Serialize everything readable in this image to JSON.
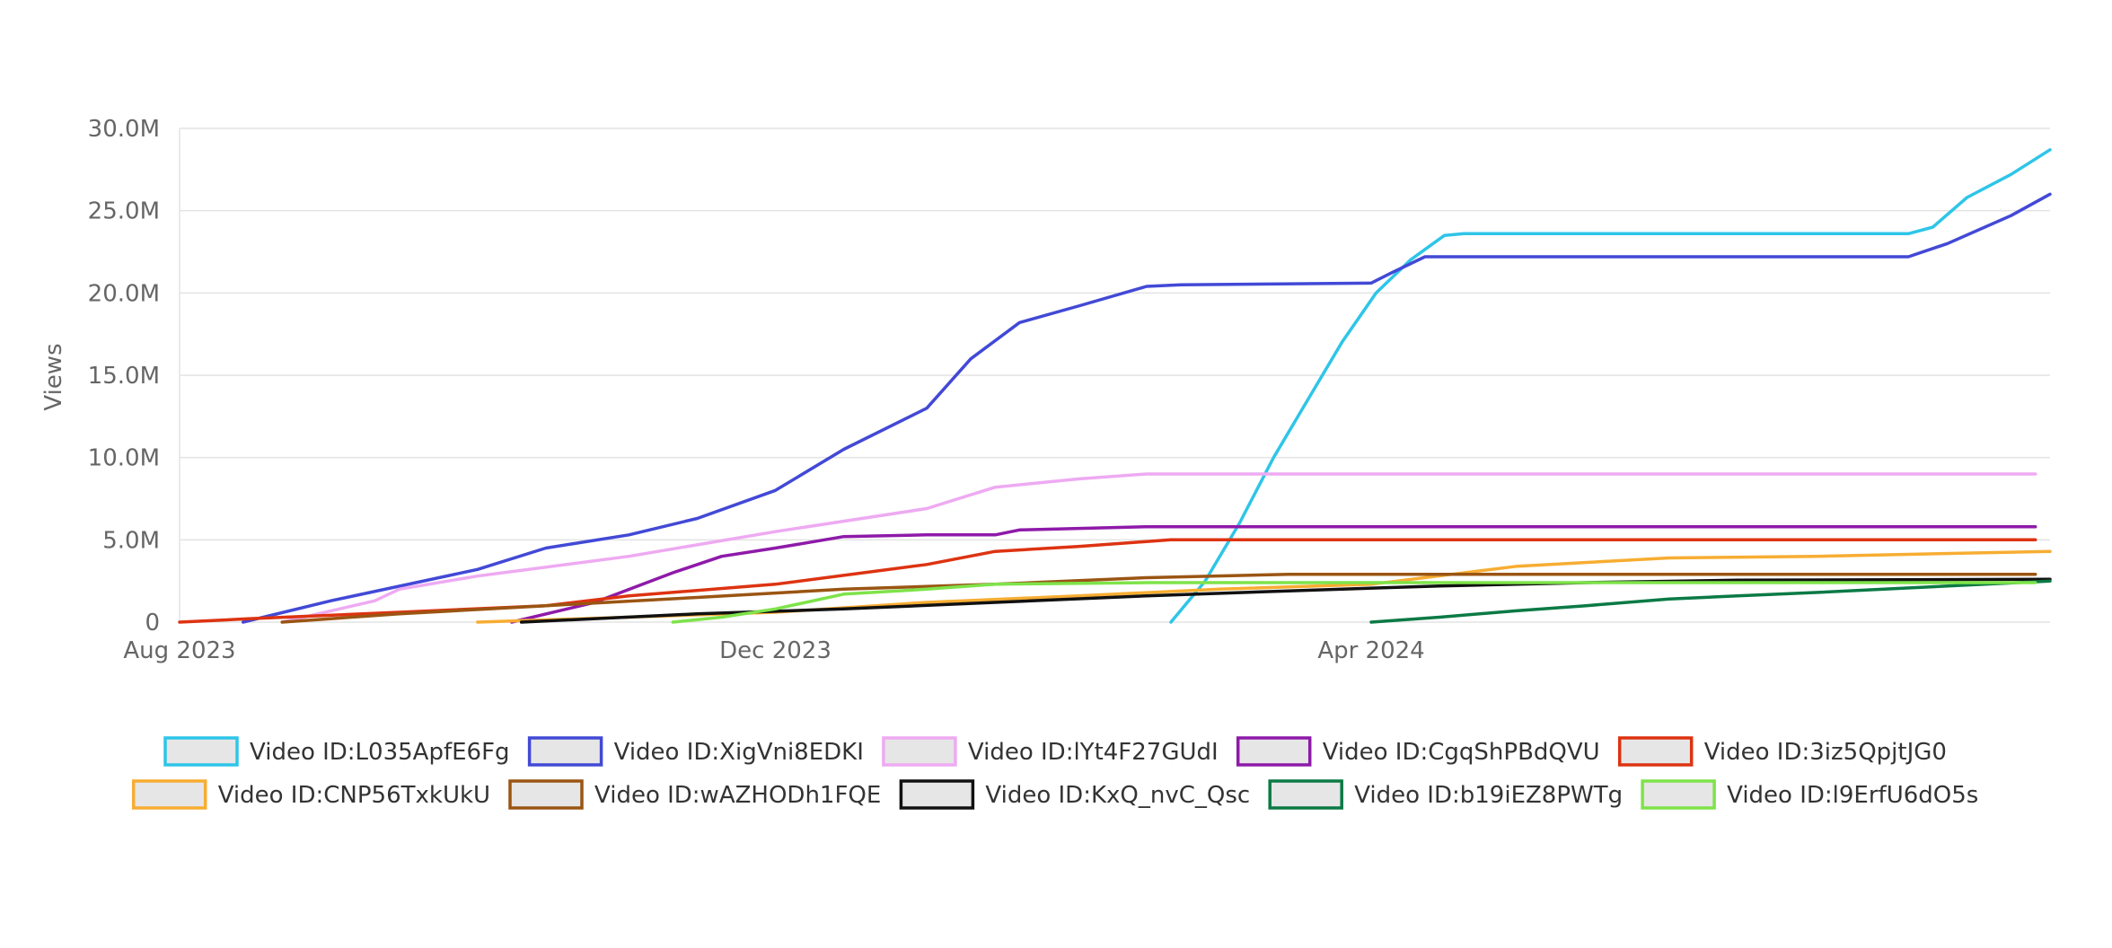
{
  "chart_data": {
    "type": "line",
    "title": "",
    "xlabel": "",
    "ylabel": "Views",
    "x_axis": {
      "type": "date",
      "range": [
        "2023-08-01",
        "2024-08-18"
      ],
      "ticks": [
        {
          "date": "2023-08-01",
          "label": "Aug 2023"
        },
        {
          "date": "2023-12-01",
          "label": "Dec 2023"
        },
        {
          "date": "2024-04-01",
          "label": "Apr 2024"
        }
      ]
    },
    "y_axis": {
      "range": [
        0,
        30000000
      ],
      "ticks": [
        {
          "value": 0,
          "label": "0"
        },
        {
          "value": 5000000,
          "label": "5.0M"
        },
        {
          "value": 10000000,
          "label": "10.0M"
        },
        {
          "value": 15000000,
          "label": "15.0M"
        },
        {
          "value": 20000000,
          "label": "20.0M"
        },
        {
          "value": 25000000,
          "label": "25.0M"
        },
        {
          "value": 30000000,
          "label": "30.0M"
        }
      ]
    },
    "grid": true,
    "legend_position": "bottom",
    "series": [
      {
        "name": "Video ID:L035ApfE6Fg",
        "color": "#2ec5e8",
        "points": [
          [
            "2024-02-20",
            0
          ],
          [
            "2024-02-27",
            2500000
          ],
          [
            "2024-03-05",
            6000000
          ],
          [
            "2024-03-12",
            10000000
          ],
          [
            "2024-03-19",
            13500000
          ],
          [
            "2024-03-26",
            17000000
          ],
          [
            "2024-04-02",
            20000000
          ],
          [
            "2024-04-09",
            22000000
          ],
          [
            "2024-04-16",
            23500000
          ],
          [
            "2024-04-20",
            23600000
          ],
          [
            "2024-07-20",
            23600000
          ],
          [
            "2024-07-25",
            24000000
          ],
          [
            "2024-08-01",
            25800000
          ],
          [
            "2024-08-10",
            27200000
          ],
          [
            "2024-08-18",
            28700000
          ]
        ]
      },
      {
        "name": "Video ID:XigVni8EDKI",
        "color": "#4249d6",
        "points": [
          [
            "2023-08-14",
            0
          ],
          [
            "2023-09-01",
            1300000
          ],
          [
            "2023-10-01",
            3200000
          ],
          [
            "2023-10-15",
            4500000
          ],
          [
            "2023-11-01",
            5300000
          ],
          [
            "2023-11-15",
            6300000
          ],
          [
            "2023-12-01",
            8000000
          ],
          [
            "2023-12-15",
            10500000
          ],
          [
            "2024-01-01",
            13000000
          ],
          [
            "2024-01-10",
            16000000
          ],
          [
            "2024-01-20",
            18200000
          ],
          [
            "2024-02-01",
            19200000
          ],
          [
            "2024-02-15",
            20400000
          ],
          [
            "2024-02-22",
            20500000
          ],
          [
            "2024-04-01",
            20600000
          ],
          [
            "2024-04-05",
            21200000
          ],
          [
            "2024-04-12",
            22200000
          ],
          [
            "2024-07-20",
            22200000
          ],
          [
            "2024-07-28",
            23000000
          ],
          [
            "2024-08-10",
            24700000
          ],
          [
            "2024-08-18",
            26000000
          ]
        ]
      },
      {
        "name": "Video ID:lYt4F27GUdI",
        "color": "#eeaaf2",
        "points": [
          [
            "2023-08-22",
            0
          ],
          [
            "2023-09-10",
            1300000
          ],
          [
            "2023-09-15",
            2000000
          ],
          [
            "2023-10-01",
            2800000
          ],
          [
            "2023-11-01",
            4000000
          ],
          [
            "2023-12-01",
            5500000
          ],
          [
            "2024-01-01",
            6900000
          ],
          [
            "2024-01-15",
            8200000
          ],
          [
            "2024-02-01",
            8700000
          ],
          [
            "2024-02-15",
            9000000
          ],
          [
            "2024-08-15",
            9000000
          ]
        ]
      },
      {
        "name": "Video ID:CgqShPBdQVU",
        "color": "#8e1aa9",
        "points": [
          [
            "2023-10-08",
            0
          ],
          [
            "2023-10-25",
            1200000
          ],
          [
            "2023-11-10",
            3000000
          ],
          [
            "2023-11-20",
            4000000
          ],
          [
            "2023-12-01",
            4500000
          ],
          [
            "2023-12-15",
            5200000
          ],
          [
            "2024-01-01",
            5300000
          ],
          [
            "2024-01-15",
            5300000
          ],
          [
            "2024-01-20",
            5600000
          ],
          [
            "2024-02-15",
            5800000
          ],
          [
            "2024-08-15",
            5800000
          ]
        ]
      },
      {
        "name": "Video ID:3iz5QpjtJG0",
        "color": "#dd3311",
        "points": [
          [
            "2023-08-01",
            0
          ],
          [
            "2023-08-15",
            200000
          ],
          [
            "2023-09-15",
            600000
          ],
          [
            "2023-10-15",
            1000000
          ],
          [
            "2023-11-01",
            1600000
          ],
          [
            "2023-12-01",
            2300000
          ],
          [
            "2024-01-01",
            3500000
          ],
          [
            "2024-01-15",
            4300000
          ],
          [
            "2024-02-01",
            4600000
          ],
          [
            "2024-02-20",
            5000000
          ],
          [
            "2024-08-15",
            5000000
          ]
        ]
      },
      {
        "name": "Video ID:CNP56TxkUkU",
        "color": "#f7ad32",
        "points": [
          [
            "2023-10-01",
            0
          ],
          [
            "2023-12-01",
            600000
          ],
          [
            "2024-01-01",
            1200000
          ],
          [
            "2024-02-01",
            1600000
          ],
          [
            "2024-03-01",
            2000000
          ],
          [
            "2024-04-01",
            2300000
          ],
          [
            "2024-05-01",
            3400000
          ],
          [
            "2024-06-01",
            3900000
          ],
          [
            "2024-07-01",
            4000000
          ],
          [
            "2024-08-18",
            4300000
          ]
        ]
      },
      {
        "name": "Video ID:wAZHODh1FQE",
        "color": "#9a5513",
        "points": [
          [
            "2023-08-22",
            0
          ],
          [
            "2023-09-15",
            500000
          ],
          [
            "2023-10-15",
            1000000
          ],
          [
            "2023-11-15",
            1500000
          ],
          [
            "2023-12-15",
            2000000
          ],
          [
            "2024-01-15",
            2300000
          ],
          [
            "2024-02-15",
            2700000
          ],
          [
            "2024-03-15",
            2900000
          ],
          [
            "2024-08-15",
            2900000
          ]
        ]
      },
      {
        "name": "Video ID:KxQ_nvC_Qsc",
        "color": "#111111",
        "points": [
          [
            "2023-10-10",
            0
          ],
          [
            "2023-11-15",
            500000
          ],
          [
            "2023-12-15",
            800000
          ],
          [
            "2024-01-15",
            1200000
          ],
          [
            "2024-02-15",
            1600000
          ],
          [
            "2024-03-15",
            1900000
          ],
          [
            "2024-04-15",
            2200000
          ],
          [
            "2024-05-15",
            2400000
          ],
          [
            "2024-06-15",
            2550000
          ],
          [
            "2024-08-18",
            2600000
          ]
        ]
      },
      {
        "name": "Video ID:b19iEZ8PWTg",
        "color": "#0b7a45",
        "points": [
          [
            "2024-04-01",
            0
          ],
          [
            "2024-04-15",
            300000
          ],
          [
            "2024-05-01",
            700000
          ],
          [
            "2024-05-15",
            1000000
          ],
          [
            "2024-06-01",
            1400000
          ],
          [
            "2024-06-15",
            1600000
          ],
          [
            "2024-07-01",
            1800000
          ],
          [
            "2024-07-15",
            2000000
          ],
          [
            "2024-08-18",
            2500000
          ]
        ]
      },
      {
        "name": "Video ID:l9ErfU6dO5s",
        "color": "#7ee34a",
        "points": [
          [
            "2023-11-10",
            0
          ],
          [
            "2023-11-20",
            300000
          ],
          [
            "2023-12-01",
            800000
          ],
          [
            "2023-12-15",
            1700000
          ],
          [
            "2024-01-01",
            2000000
          ],
          [
            "2024-01-15",
            2300000
          ],
          [
            "2024-02-15",
            2400000
          ],
          [
            "2024-08-15",
            2400000
          ]
        ]
      }
    ]
  }
}
